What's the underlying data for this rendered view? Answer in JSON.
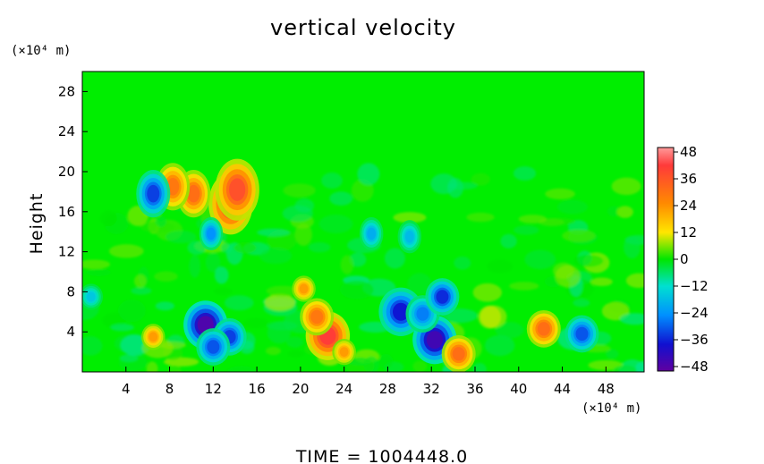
{
  "chart_data": {
    "type": "heatmap",
    "title": "vertical velocity",
    "ylabel": "Height",
    "x_unit": "(×10⁴ m)",
    "y_unit": "(×10⁴ m)",
    "x_ticks": [
      4,
      8,
      12,
      16,
      20,
      24,
      28,
      32,
      36,
      40,
      44,
      48
    ],
    "y_ticks": [
      4,
      8,
      12,
      16,
      20,
      24,
      28
    ],
    "xlim": [
      0,
      51.5
    ],
    "ylim": [
      0,
      30
    ],
    "colorbar": {
      "ticks": [
        "48",
        "36",
        "24",
        "12",
        "0",
        "−12",
        "−24",
        "−36",
        "−48"
      ],
      "range": [
        -48,
        48
      ]
    },
    "footer": "TIME = 1004448.0",
    "features": [
      {
        "x": 22.5,
        "y": 3.6,
        "value": 40
      },
      {
        "x": 21.5,
        "y": 5.5,
        "value": 28
      },
      {
        "x": 20.3,
        "y": 8.3,
        "value": 22
      },
      {
        "x": 24.0,
        "y": 2.0,
        "value": 22
      },
      {
        "x": 11.3,
        "y": 4.7,
        "value": -46
      },
      {
        "x": 13.5,
        "y": 3.5,
        "value": -32
      },
      {
        "x": 12.0,
        "y": 2.5,
        "value": -30
      },
      {
        "x": 32.3,
        "y": 3.2,
        "value": -44
      },
      {
        "x": 29.2,
        "y": 6.0,
        "value": -36
      },
      {
        "x": 31.2,
        "y": 5.8,
        "value": -26
      },
      {
        "x": 33.0,
        "y": 7.5,
        "value": -34
      },
      {
        "x": 45.8,
        "y": 3.8,
        "value": -30
      },
      {
        "x": 34.5,
        "y": 1.8,
        "value": 30
      },
      {
        "x": 42.3,
        "y": 4.3,
        "value": 30
      },
      {
        "x": 6.5,
        "y": 3.5,
        "value": 22
      },
      {
        "x": 0.8,
        "y": 7.5,
        "value": -16
      },
      {
        "x": 13.6,
        "y": 16.8,
        "value": 38
      },
      {
        "x": 14.2,
        "y": 18.2,
        "value": 36
      },
      {
        "x": 10.2,
        "y": 17.8,
        "value": 30
      },
      {
        "x": 8.3,
        "y": 18.5,
        "value": 28
      },
      {
        "x": 6.5,
        "y": 17.8,
        "value": -32
      },
      {
        "x": 11.8,
        "y": 13.8,
        "value": -24
      },
      {
        "x": 26.5,
        "y": 13.8,
        "value": -20
      },
      {
        "x": 30.0,
        "y": 13.5,
        "value": -18
      }
    ]
  }
}
